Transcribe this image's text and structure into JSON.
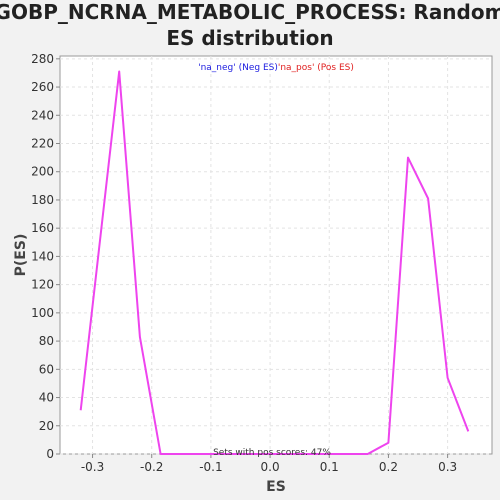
{
  "chart_data": {
    "type": "line",
    "title_line1": "GOBP_NCRNA_METABOLIC_PROCESS: Random",
    "title_line2": "ES distribution",
    "xlabel": "ES",
    "ylabel": "P(ES)",
    "xlim": [
      -0.355,
      0.375
    ],
    "ylim": [
      0,
      282
    ],
    "xticks": [
      -0.3,
      -0.2,
      -0.1,
      0.0,
      0.1,
      0.2,
      0.3
    ],
    "xtick_labels": [
      "-0.3",
      "-0.2",
      "-0.1",
      "0.0",
      "0.1",
      "0.2",
      "0.3"
    ],
    "yticks": [
      0,
      20,
      40,
      60,
      80,
      100,
      120,
      140,
      160,
      180,
      200,
      220,
      240,
      260,
      280
    ],
    "ytick_labels": [
      "0",
      "20",
      "40",
      "60",
      "80",
      "100",
      "120",
      "140",
      "160",
      "180",
      "200",
      "220",
      "240",
      "260",
      "280"
    ],
    "grid": true,
    "legend": {
      "placement": "top-center",
      "part1": "'na_neg' (Neg ES)",
      "part2": "'na_pos' (Pos ES)",
      "color1": "#2020e0",
      "color2": "#e02020"
    },
    "annotation": "Sets with pos scores: 47%",
    "series": [
      {
        "color": "#ee44ee",
        "x": [
          -0.32,
          -0.255,
          -0.22,
          -0.185,
          -0.15,
          -0.1,
          0.0,
          0.1,
          0.165,
          0.2,
          0.233,
          0.267,
          0.3,
          0.335
        ],
        "y": [
          31,
          271,
          83,
          0,
          0,
          0,
          0,
          0,
          0,
          8,
          210,
          181,
          54,
          16
        ]
      }
    ]
  }
}
